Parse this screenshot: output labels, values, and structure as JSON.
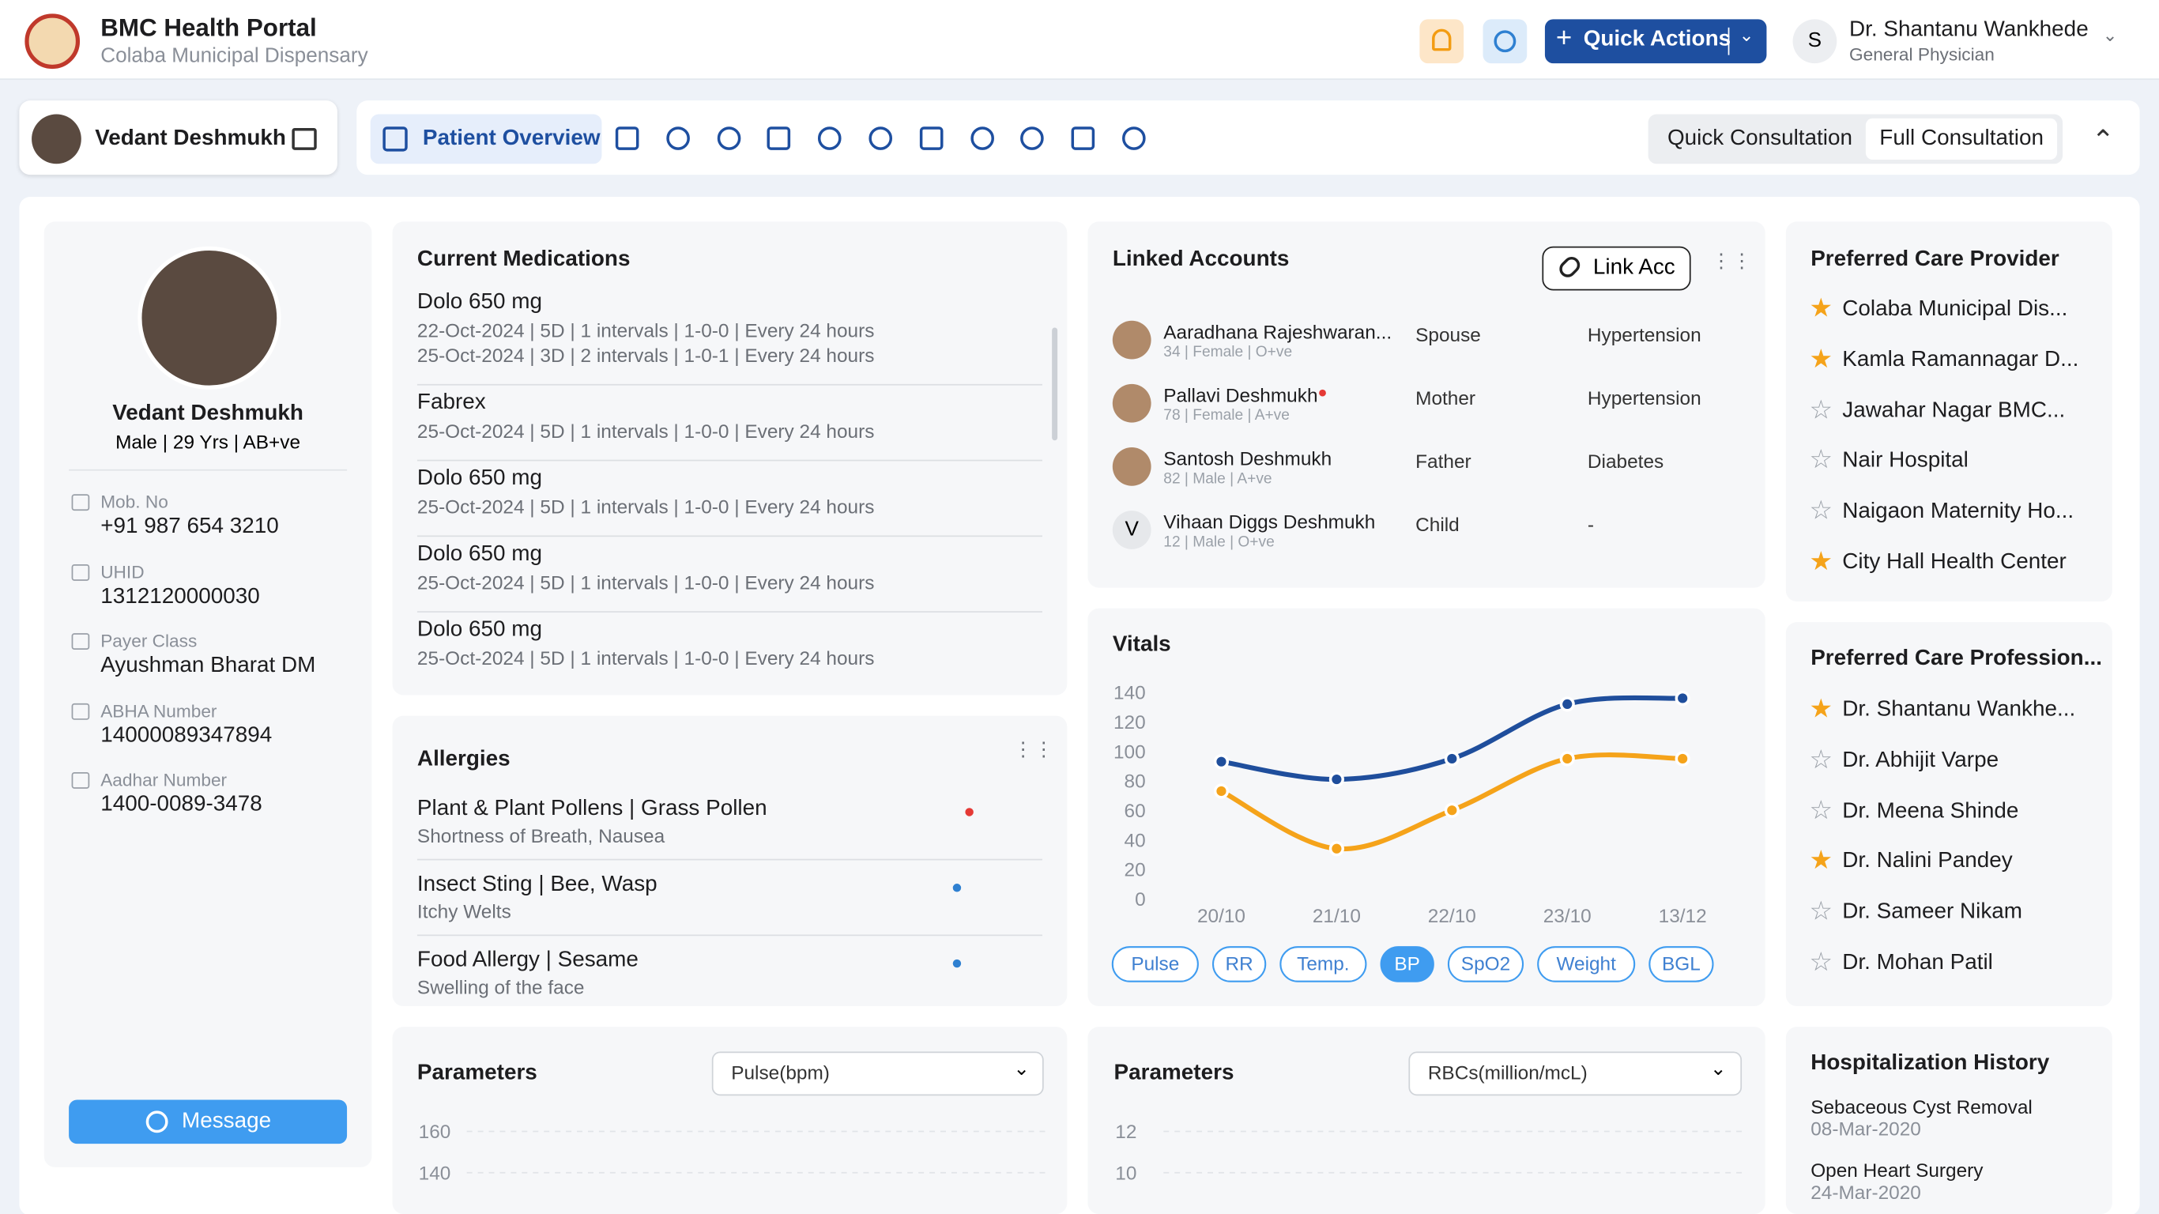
{
  "header": {
    "title": "BMC Health Portal",
    "subtitle": "Colaba Municipal Dispensary",
    "quick_actions": "Quick Actions",
    "user": {
      "initial": "S",
      "name": "Dr. Shantanu Wankhede",
      "role": "General Physician"
    }
  },
  "patient_tab": {
    "name": "Vedant Deshmukh"
  },
  "tabs": {
    "active": "Patient Overview",
    "consultation": [
      "Quick Consultation",
      "Full Consultation"
    ]
  },
  "profile": {
    "name": "Vedant Deshmukh",
    "details": "Male | 29 Yrs | AB+ve",
    "fields": [
      {
        "label": "Mob. No",
        "value": "+91 987 654 3210"
      },
      {
        "label": "UHID",
        "value": "1312120000030"
      },
      {
        "label": "Payer Class",
        "value": "Ayushman Bharat DM"
      },
      {
        "label": "ABHA Number",
        "value": "14000089347894"
      },
      {
        "label": "Aadhar Number",
        "value": "1400-0089-3478"
      }
    ],
    "message": "Message"
  },
  "medications": {
    "title": "Current Medications",
    "items": [
      {
        "name": "Dolo 650 mg",
        "lines": [
          "22-Oct-2024 | 5D | 1 intervals | 1-0-0 | Every 24 hours",
          "25-Oct-2024 | 3D | 2 intervals | 1-0-1 | Every 24 hours"
        ]
      },
      {
        "name": "Fabrex",
        "lines": [
          "25-Oct-2024 | 5D | 1 intervals | 1-0-0 | Every 24 hours"
        ]
      },
      {
        "name": "Dolo 650 mg",
        "lines": [
          "25-Oct-2024 | 5D | 1 intervals | 1-0-0 | Every 24 hours"
        ]
      },
      {
        "name": "Dolo 650 mg",
        "lines": [
          "25-Oct-2024 | 5D | 1 intervals | 1-0-0 | Every 24 hours"
        ]
      },
      {
        "name": "Dolo 650 mg",
        "lines": [
          "25-Oct-2024 | 5D | 1 intervals | 1-0-0 | Every 24 hours"
        ]
      }
    ]
  },
  "allergies": {
    "title": "Allergies",
    "items": [
      {
        "name": "Plant & Plant Pollens | Grass Pollen",
        "detail": "Shortness of Breath, Nausea",
        "status": "Active",
        "color": "#e53935"
      },
      {
        "name": "Insect Sting | Bee, Wasp",
        "detail": "Itchy Welts",
        "status": "Passive",
        "color": "#2f80d1"
      },
      {
        "name": "Food Allergy | Sesame",
        "detail": "Swelling of the face",
        "status": "Passive",
        "color": "#2f80d1"
      }
    ]
  },
  "linked": {
    "title": "Linked Accounts",
    "button": "Link Acc",
    "members": [
      {
        "name": "Aaradhana Rajeshwaran...",
        "meta": "34 | Female | O+ve",
        "relation": "Spouse",
        "condition": "Hypertension"
      },
      {
        "name": "Pallavi Deshmukh",
        "meta": "78 | Female | A+ve",
        "relation": "Mother",
        "condition": "Hypertension"
      },
      {
        "name": "Santosh Deshmukh",
        "meta": "82 | Male | A+ve",
        "relation": "Father",
        "condition": "Diabetes"
      },
      {
        "name": "Vihaan Diggs Deshmukh",
        "meta": "12 | Male | O+ve",
        "relation": "Child",
        "condition": "-",
        "initial": "V"
      }
    ]
  },
  "vitals": {
    "type": "line",
    "title": "Vitals",
    "categories": [
      "20/10",
      "21/10",
      "22/10",
      "23/10",
      "13/12"
    ],
    "series": [
      {
        "color": "#1f4e9c",
        "values": [
          93,
          81,
          95,
          132,
          136
        ]
      },
      {
        "color": "#f5a31a",
        "values": [
          73,
          34,
          60,
          95,
          95
        ]
      }
    ],
    "ylim": [
      0,
      140
    ],
    "yticks": [
      0,
      20,
      40,
      60,
      80,
      100,
      120,
      140
    ],
    "chips": [
      "Pulse",
      "RR",
      "Temp.",
      "BP",
      "SpO2",
      "Weight",
      "BGL"
    ],
    "active_chip": "BP"
  },
  "parameters": [
    {
      "title": "Parameters",
      "select": "Pulse(bpm)",
      "yticks": [
        160,
        140
      ]
    },
    {
      "title": "Parameters",
      "select": "RBCs(million/mcL)",
      "yticks": [
        12,
        10
      ]
    }
  ],
  "providers": {
    "title": "Preferred Care Provider",
    "items": [
      {
        "name": "Colaba Municipal Dis...",
        "starred": true
      },
      {
        "name": "Kamla Ramannagar D...",
        "starred": true
      },
      {
        "name": "Jawahar Nagar BMC...",
        "starred": false
      },
      {
        "name": "Nair Hospital",
        "starred": false
      },
      {
        "name": "Naigaon Maternity Ho...",
        "starred": false
      },
      {
        "name": "City Hall Health Center",
        "starred": true
      }
    ]
  },
  "professionals": {
    "title": "Preferred Care Profession...",
    "items": [
      {
        "name": "Dr. Shantanu Wankhe...",
        "starred": true
      },
      {
        "name": "Dr. Abhijit Varpe",
        "starred": false
      },
      {
        "name": "Dr. Meena Shinde",
        "starred": false
      },
      {
        "name": "Dr. Nalini Pandey",
        "starred": true
      },
      {
        "name": "Dr. Sameer Nikam",
        "starred": false
      },
      {
        "name": "Dr. Mohan Patil",
        "starred": false
      }
    ]
  },
  "hospitalization": {
    "title": "Hospitalization History",
    "items": [
      {
        "name": "Sebaceous Cyst Removal",
        "date": "08-Mar-2020"
      },
      {
        "name": "Open Heart Surgery",
        "date": "24-Mar-2020"
      }
    ]
  }
}
